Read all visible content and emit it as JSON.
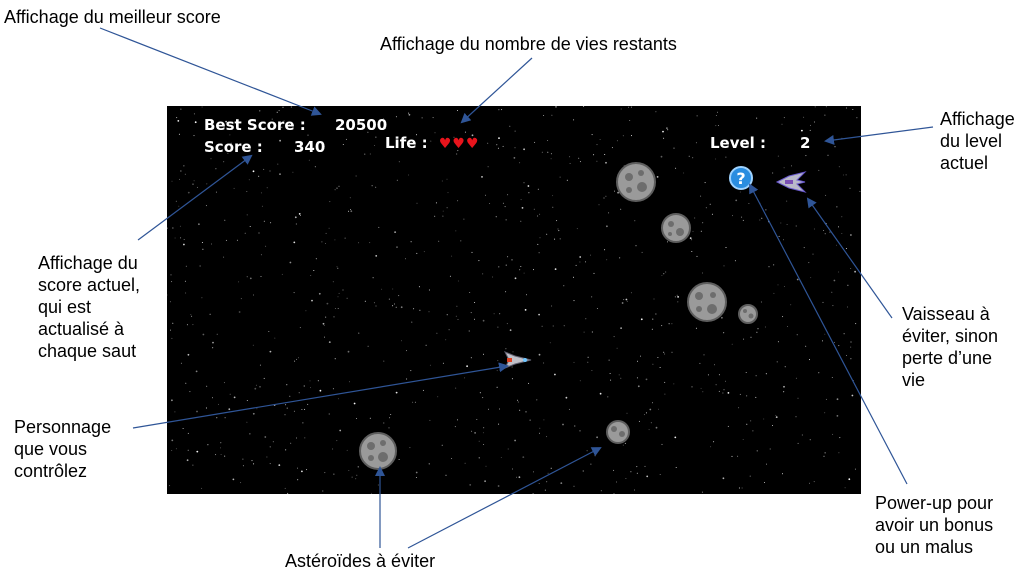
{
  "annotations": {
    "best_score": "Affichage du meilleur score",
    "lives": "Affichage du nombre de vies restants",
    "level": "Affichage\ndu level\nactuel",
    "score": "Affichage du\nscore actuel,\nqui est\nactualisé à\nchaque saut",
    "player": "Personnage\nque vous\ncontrôlez",
    "enemy": "Vaisseau à\néviter, sinon\nperte d’une\nvie",
    "powerup": "Power-up pour\navoir un bonus\nou un malus",
    "asteroids": "Astéroïdes à éviter"
  },
  "hud": {
    "best_score_label": "Best Score :",
    "best_score_value": "20500",
    "score_label": "Score :",
    "score_value": "340",
    "life_label": "Life :",
    "lives": 3,
    "level_label": "Level :",
    "level_value": "2"
  },
  "powerup_symbol": "?",
  "colors": {
    "background": "#000000",
    "hud_text": "#ffffff",
    "heart": "#e8141c",
    "arrow": "#2f5597",
    "asteroid": "#9a9a9a",
    "powerup": "#2a8de0"
  },
  "icons": [
    "heart-icon",
    "asteroid-icon",
    "player-ship-icon",
    "enemy-ship-icon",
    "powerup-icon"
  ]
}
